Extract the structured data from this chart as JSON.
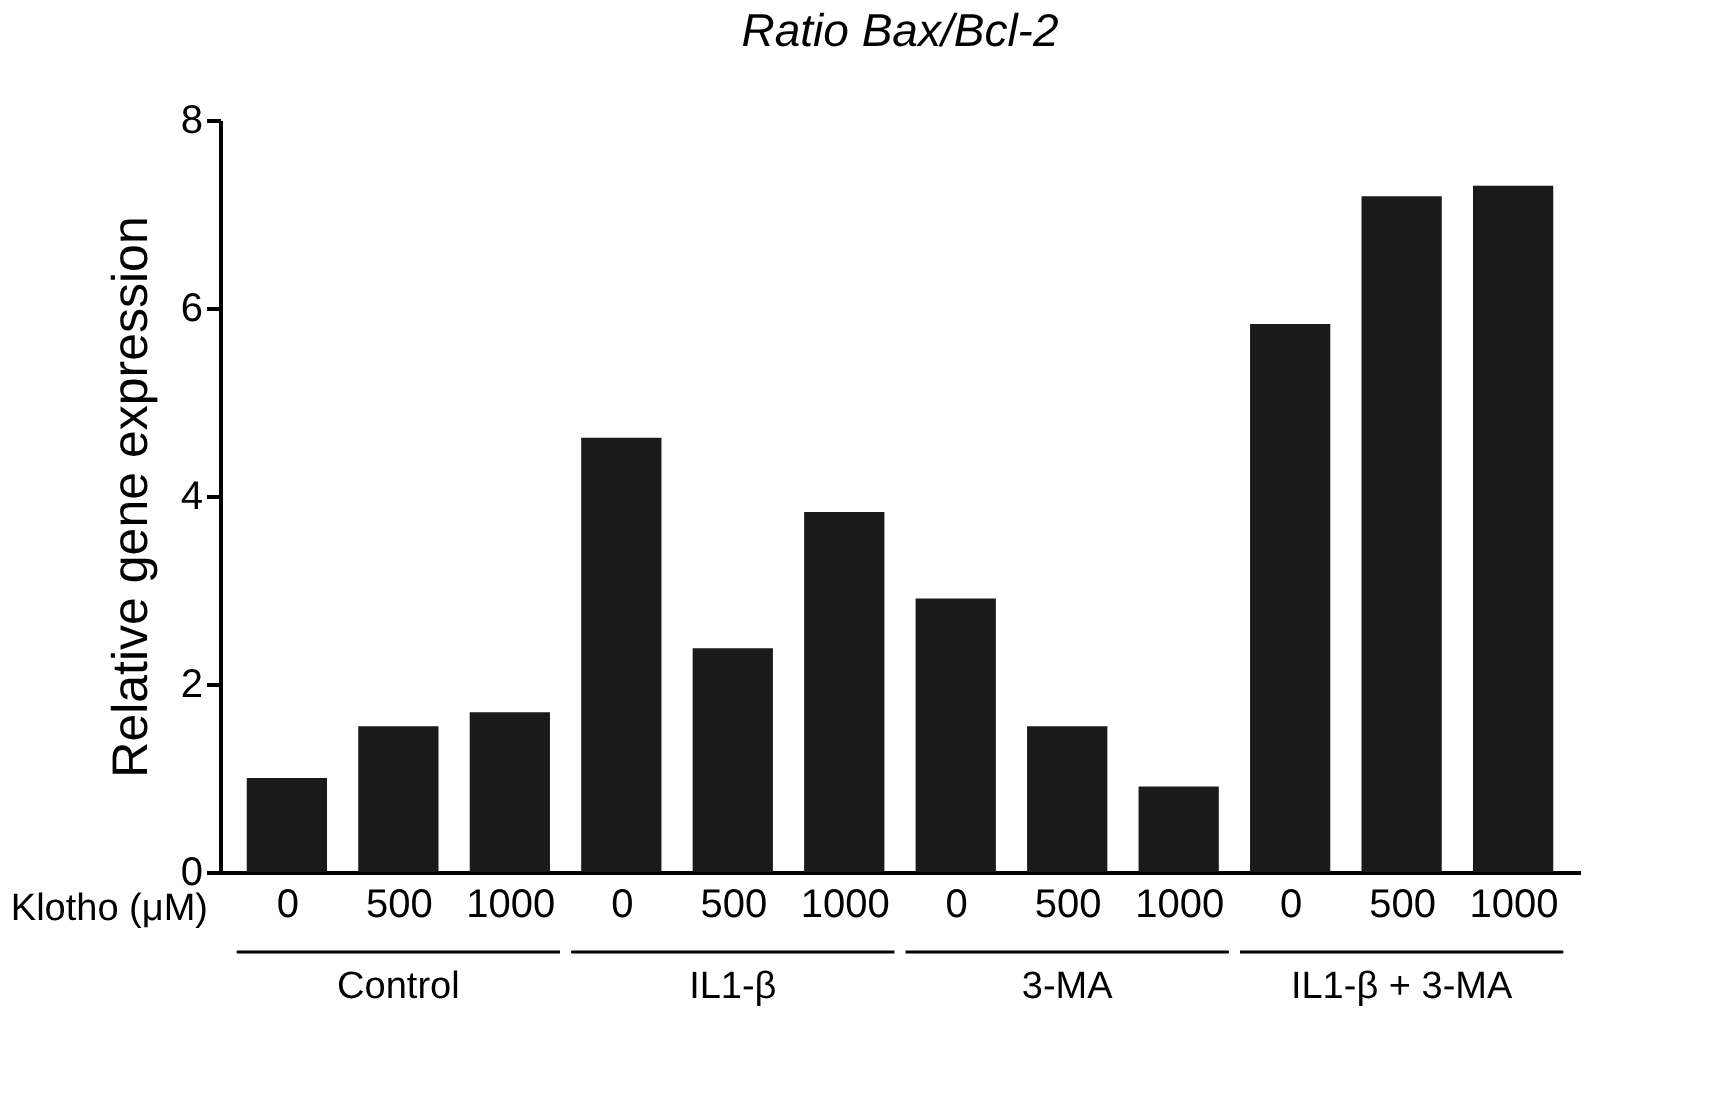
{
  "chart_data": {
    "type": "bar",
    "title": "Ratio Bax/Bcl-2",
    "ylabel": "Relative gene expression",
    "xlabel": "Klotho (μM)",
    "categories": [
      "0",
      "500",
      "1000",
      "0",
      "500",
      "1000",
      "0",
      "500",
      "1000",
      "0",
      "500",
      "1000"
    ],
    "values": [
      1.0,
      1.55,
      1.7,
      4.62,
      2.38,
      3.83,
      2.91,
      1.55,
      0.91,
      5.83,
      7.19,
      7.3
    ],
    "color": "#1a1a1a",
    "ylim": [
      0,
      8
    ],
    "yticks": [
      0,
      2,
      4,
      6,
      8
    ],
    "grid": false,
    "annotations": [
      "Control",
      "IL1-β",
      "3-MA",
      "IL1-β + 3-MA"
    ]
  }
}
